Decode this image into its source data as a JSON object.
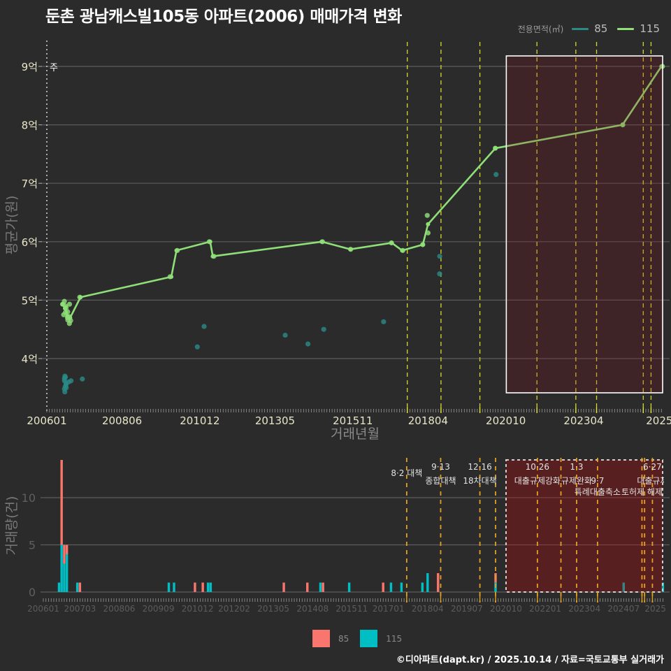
{
  "title": "둔촌 광남캐스빌105동 아파트(2006) 매매가격 변화",
  "legend_top": {
    "title": "전용면적(㎡)",
    "items": [
      {
        "label": "85",
        "color": "#2a8a86"
      },
      {
        "label": "115",
        "color": "#8fdf78"
      }
    ]
  },
  "legend_bottom": {
    "items": [
      {
        "label": "85",
        "color": "#f8766d"
      },
      {
        "label": "115",
        "color": "#00bfc4"
      }
    ]
  },
  "footer": "©디아파트(dapt.kr) / 2025.10.14 / 자료=국토교통부 실거래가",
  "chart_data": [
    {
      "id": "price",
      "type": "line",
      "title": "둔촌 광남캐스빌105동 아파트(2006) 매매가격 변화",
      "xlabel": "거래년월",
      "ylabel": "평균가(원)",
      "unit": "억원",
      "ylim": [
        3.3,
        9.4
      ],
      "grid": true,
      "legend_position": "top-right",
      "annotation_text": "주",
      "x_ticks": [
        {
          "month": "200601",
          "label": "200601"
        },
        {
          "month": "200806",
          "label": "200806"
        },
        {
          "month": "201012",
          "label": "201012"
        },
        {
          "month": "201305",
          "label": "201305"
        },
        {
          "month": "201511",
          "label": "201511"
        },
        {
          "month": "201804",
          "label": "201804"
        },
        {
          "month": "202010",
          "label": "202010"
        },
        {
          "month": "202304",
          "label": "202304"
        },
        {
          "month": "202510",
          "label": "2025"
        }
      ],
      "y_ticks": [
        {
          "value": 4,
          "label": "4억"
        },
        {
          "value": 5,
          "label": "5억"
        },
        {
          "value": 6,
          "label": "6억"
        },
        {
          "value": 7,
          "label": "7억"
        },
        {
          "value": 8,
          "label": "8억"
        },
        {
          "value": 9,
          "label": "9억"
        }
      ],
      "policy_lines": [
        "201708",
        "201809",
        "201912",
        "202110",
        "202301",
        "202309",
        "202503",
        "202506"
      ],
      "highlight_region": {
        "from": "202011",
        "to": "202510"
      },
      "series": [
        {
          "name": "85",
          "color": "#2a8a86",
          "points": [
            [
              "200608",
              3.7
            ],
            [
              "200608",
              3.68
            ],
            [
              "200608",
              3.66
            ],
            [
              "200608",
              3.62
            ],
            [
              "200608",
              3.58
            ],
            [
              "200608",
              3.55
            ],
            [
              "200608",
              3.52
            ],
            [
              "200608",
              3.48
            ],
            [
              "200608",
              3.43
            ],
            [
              "200609",
              3.6
            ],
            [
              "200609",
              3.5
            ],
            [
              "200610",
              3.62
            ],
            [
              "200703",
              3.65
            ],
            [
              "201011",
              4.2
            ],
            [
              "201102",
              4.55
            ],
            [
              "201309",
              4.4
            ],
            [
              "201406",
              4.25
            ],
            [
              "201412",
              4.5
            ],
            [
              "201611",
              4.63
            ],
            [
              "201808",
              5.75
            ],
            [
              "201808",
              5.45
            ],
            [
              "202006",
              7.15
            ]
          ],
          "line": []
        },
        {
          "name": "115",
          "color": "#8fdf78",
          "points": [
            [
              "200607",
              4.93
            ],
            [
              "200608",
              4.98
            ],
            [
              "200608",
              4.9
            ],
            [
              "200608",
              4.87
            ],
            [
              "200608",
              4.79
            ],
            [
              "200608",
              4.75
            ],
            [
              "200609",
              4.8
            ],
            [
              "200609",
              4.7
            ],
            [
              "200609",
              4.66
            ],
            [
              "200610",
              4.93
            ],
            [
              "200610",
              4.72
            ],
            [
              "200610",
              4.65
            ],
            [
              "200610",
              4.6
            ],
            [
              "200702",
              5.05
            ],
            [
              "201001",
              5.4
            ],
            [
              "201003",
              5.85
            ],
            [
              "201104",
              6.0
            ],
            [
              "201105",
              5.75
            ],
            [
              "201411",
              6.0
            ],
            [
              "201510",
              5.87
            ],
            [
              "201702",
              5.98
            ],
            [
              "201706",
              5.85
            ],
            [
              "201802",
              5.95
            ],
            [
              "201804",
              6.45
            ],
            [
              "201804",
              6.15
            ],
            [
              "202006",
              7.6
            ],
            [
              "202407",
              8.0
            ],
            [
              "202510",
              9.0
            ]
          ],
          "line": [
            [
              "200607",
              4.93
            ],
            [
              "200608",
              4.86
            ],
            [
              "200609",
              4.72
            ],
            [
              "200610",
              4.7
            ],
            [
              "200702",
              5.05
            ],
            [
              "201001",
              5.4
            ],
            [
              "201003",
              5.85
            ],
            [
              "201104",
              6.0
            ],
            [
              "201105",
              5.75
            ],
            [
              "201411",
              6.0
            ],
            [
              "201510",
              5.87
            ],
            [
              "201702",
              5.98
            ],
            [
              "201706",
              5.85
            ],
            [
              "201802",
              5.95
            ],
            [
              "201804",
              6.3
            ],
            [
              "202006",
              7.6
            ],
            [
              "202407",
              8.0
            ],
            [
              "202510",
              9.0
            ]
          ]
        }
      ]
    },
    {
      "id": "volume",
      "type": "bar",
      "stacked": true,
      "xlabel": "",
      "ylabel": "거래량(건)",
      "ylim": [
        0,
        14
      ],
      "grid": true,
      "legend_position": "bottom",
      "x_ticks": [
        {
          "month": "200601",
          "label": "200601"
        },
        {
          "month": "200703",
          "label": "200703"
        },
        {
          "month": "200806",
          "label": "200806"
        },
        {
          "month": "200909",
          "label": "200909"
        },
        {
          "month": "201012",
          "label": "201012"
        },
        {
          "month": "201202",
          "label": "201202"
        },
        {
          "month": "201305",
          "label": "201305"
        },
        {
          "month": "201408",
          "label": "201408"
        },
        {
          "month": "201511",
          "label": "201511"
        },
        {
          "month": "201701",
          "label": "201701"
        },
        {
          "month": "201804",
          "label": "201804"
        },
        {
          "month": "201907",
          "label": "201907"
        },
        {
          "month": "202010",
          "label": "202010"
        },
        {
          "month": "202201",
          "label": "202201"
        },
        {
          "month": "202304",
          "label": "202304"
        },
        {
          "month": "202407",
          "label": "202407"
        },
        {
          "month": "202510",
          "label": "2025"
        }
      ],
      "y_ticks": [
        {
          "value": 0,
          "label": "0"
        },
        {
          "value": 5,
          "label": "5"
        },
        {
          "value": 10,
          "label": "10"
        }
      ],
      "policy_lines": [
        "201708",
        "201809",
        "201912",
        "202006",
        "202110",
        "202207",
        "202301",
        "202309",
        "202502",
        "202503",
        "202506"
      ],
      "highlight_region": {
        "from": "202010",
        "to": "202510"
      },
      "annotations": [
        {
          "month": "201708",
          "lines": [
            {
              "text": "8·2 대책",
              "row": 1.5
            }
          ]
        },
        {
          "month": "201809",
          "lines": [
            {
              "text": "9·13",
              "row": 1
            },
            {
              "text": "종합대책",
              "row": 2
            }
          ]
        },
        {
          "month": "201912",
          "lines": [
            {
              "text": "12·16",
              "row": 1
            },
            {
              "text": "18차대책",
              "row": 2
            }
          ]
        },
        {
          "month": "202110",
          "lines": [
            {
              "text": "10·26",
              "row": 1
            },
            {
              "text": "대출규제강화",
              "row": 2
            }
          ]
        },
        {
          "month": "202301",
          "lines": [
            {
              "text": "1·3",
              "row": 1
            },
            {
              "text": "규제완화",
              "row": 2
            }
          ]
        },
        {
          "month": "202309",
          "lines": [
            {
              "text": "9·7",
              "row": 2
            },
            {
              "text": "특례대출축소",
              "row": 3
            }
          ]
        },
        {
          "month": "202502",
          "lines": [
            {
              "text": "토허제 해제",
              "row": 3
            }
          ]
        },
        {
          "month": "202506",
          "lines": [
            {
              "text": "6·27",
              "row": 1
            },
            {
              "text": "대출규제",
              "row": 2
            }
          ]
        }
      ],
      "series": [
        {
          "name": "115",
          "color": "#00bfc4",
          "values": [
            [
              "200607",
              1
            ],
            [
              "200608",
              5
            ],
            [
              "200609",
              3
            ],
            [
              "200610",
              4
            ],
            [
              "200702",
              1
            ],
            [
              "201001",
              1
            ],
            [
              "201003",
              1
            ],
            [
              "201104",
              1
            ],
            [
              "201105",
              1
            ],
            [
              "201411",
              1
            ],
            [
              "201510",
              1
            ],
            [
              "201702",
              1
            ],
            [
              "201706",
              1
            ],
            [
              "201802",
              1
            ],
            [
              "201804",
              2
            ],
            [
              "202006",
              1
            ],
            [
              "202407",
              1
            ],
            [
              "202510",
              1
            ]
          ]
        },
        {
          "name": "85",
          "color": "#f8766d",
          "values": [
            [
              "200608",
              9
            ],
            [
              "200609",
              2
            ],
            [
              "200610",
              1
            ],
            [
              "200703",
              1
            ],
            [
              "201011",
              1
            ],
            [
              "201102",
              1
            ],
            [
              "201309",
              1
            ],
            [
              "201406",
              1
            ],
            [
              "201412",
              1
            ],
            [
              "201611",
              1
            ],
            [
              "201808",
              2
            ],
            [
              "202006",
              1
            ]
          ]
        }
      ]
    }
  ]
}
